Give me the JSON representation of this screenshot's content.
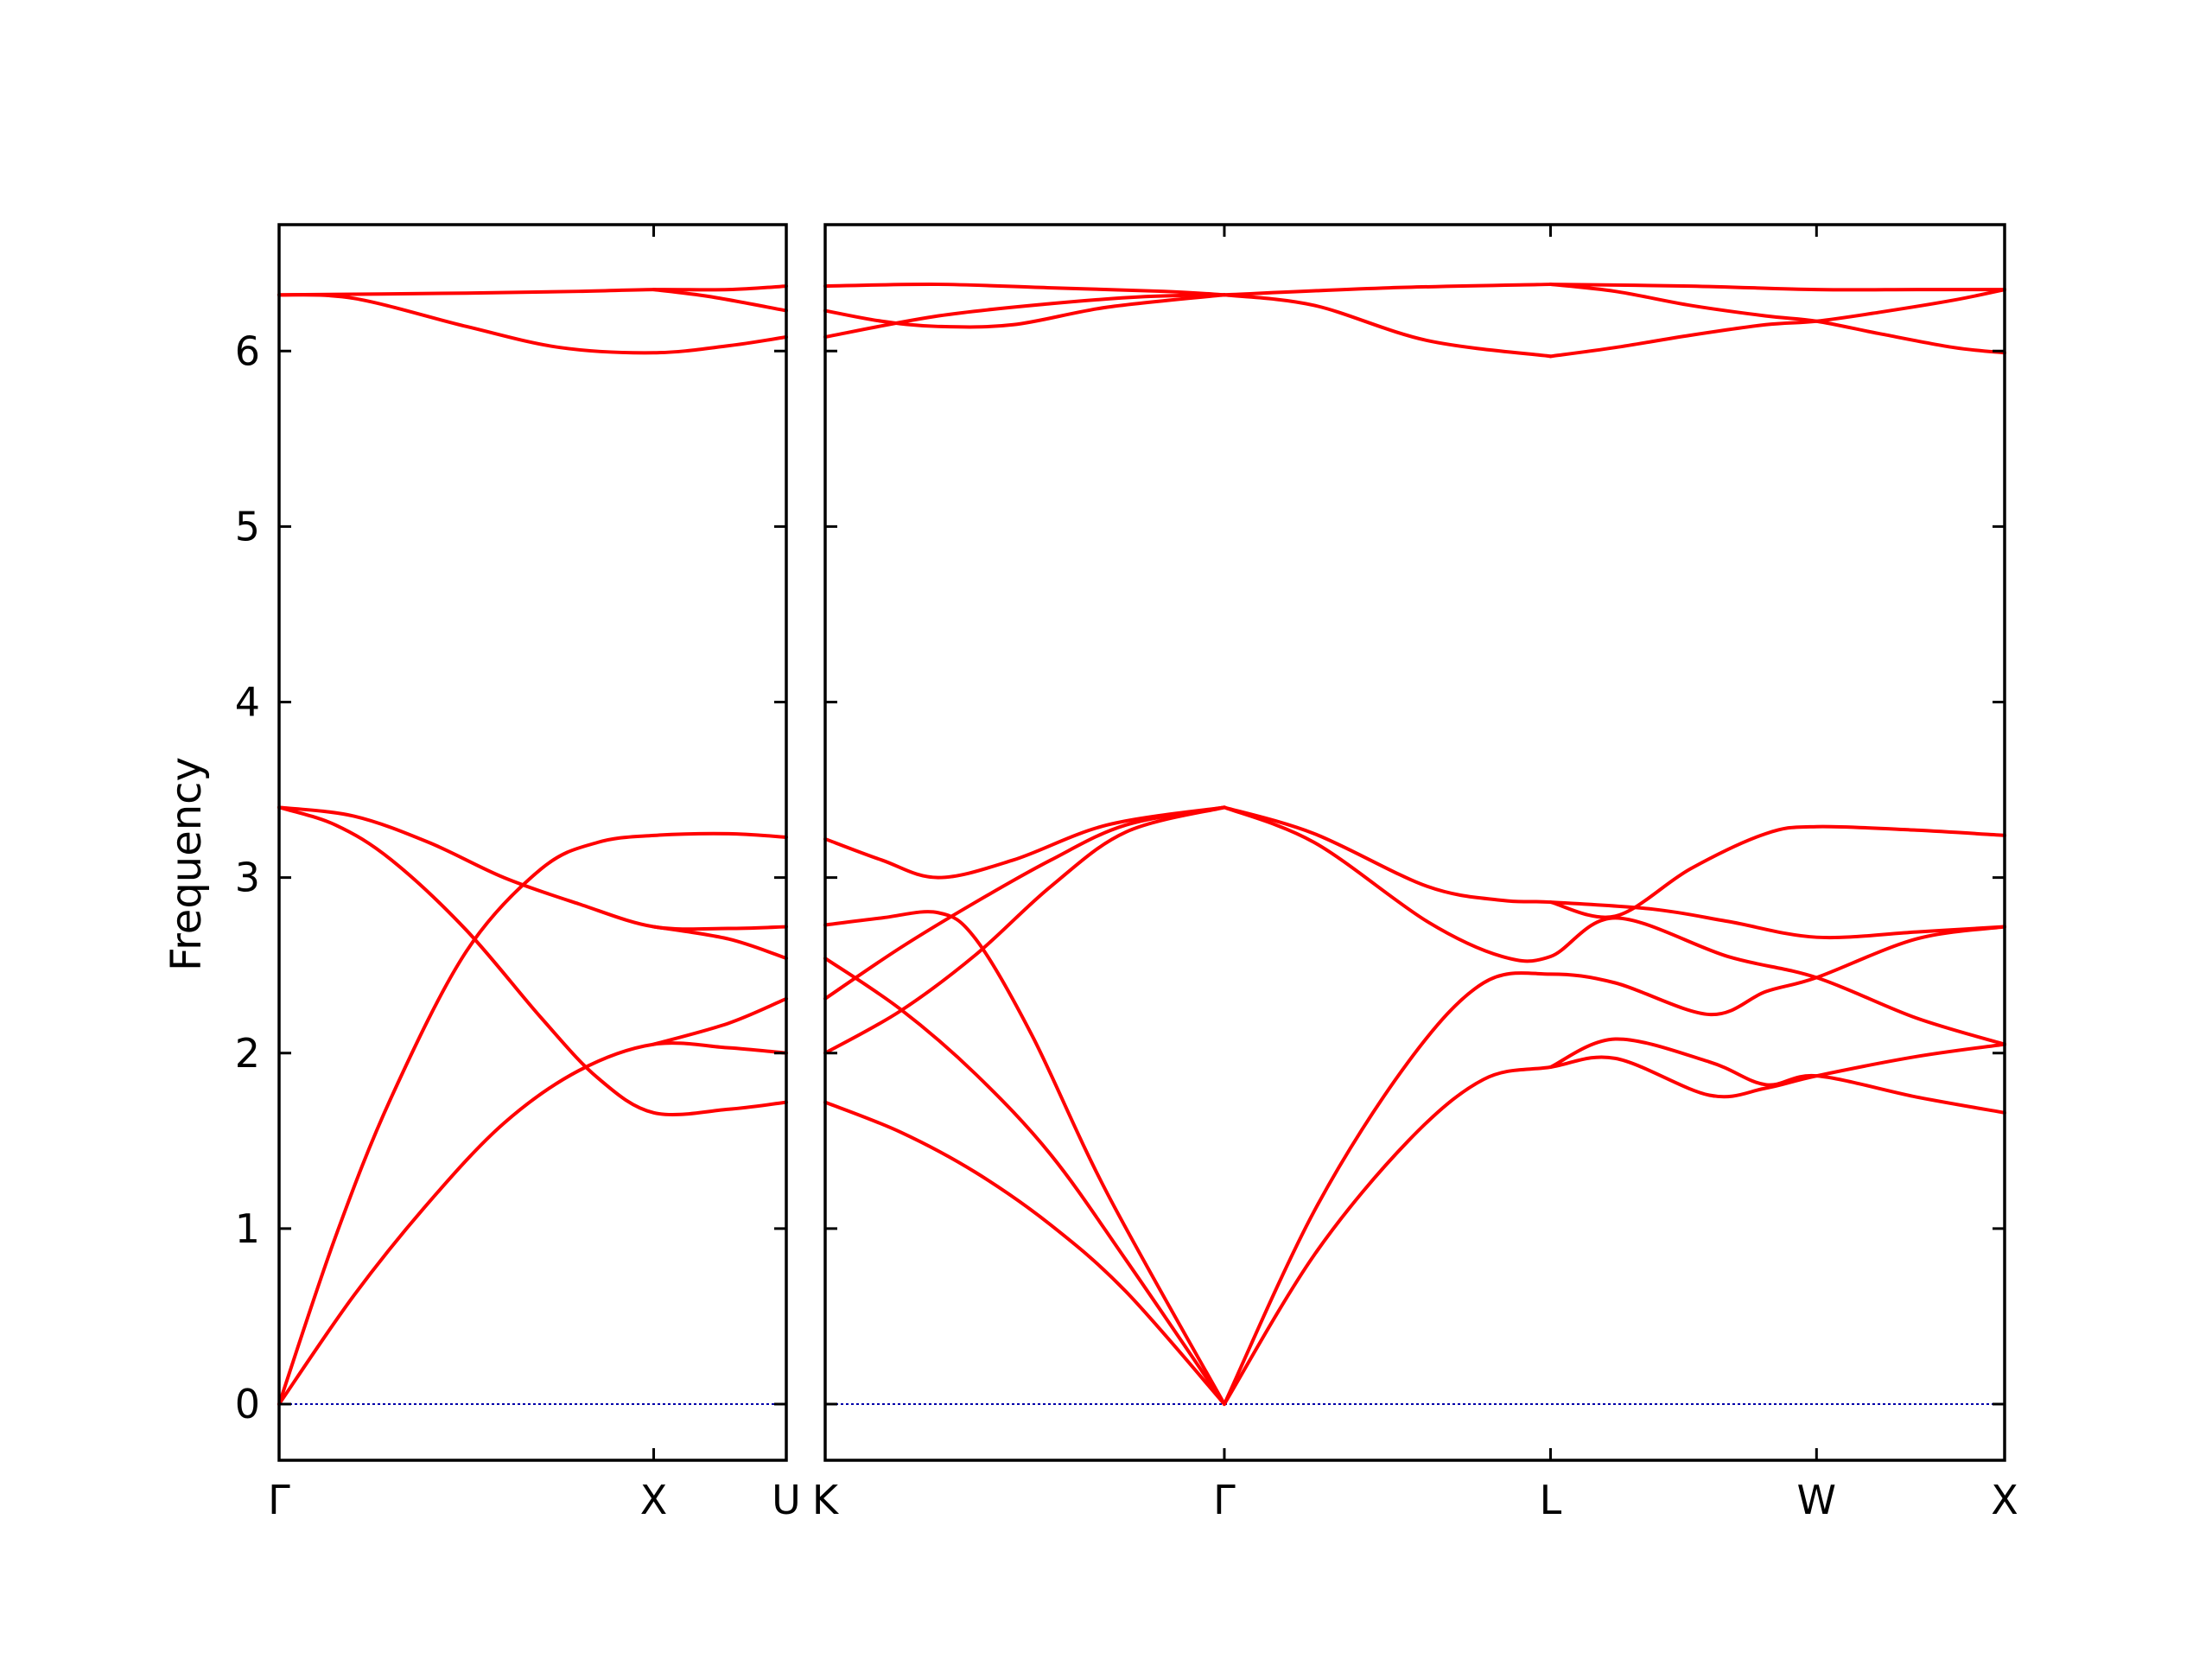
{
  "chart_data": {
    "type": "line",
    "ylabel": "Frequency",
    "ylim": [
      -0.32,
      6.72
    ],
    "yticks": [
      0,
      1,
      2,
      3,
      4,
      5,
      6
    ],
    "grid": false,
    "colors": {
      "bands": "#ff0000",
      "zero_line": "#0000aa"
    },
    "panels": [
      {
        "kpoint_labels": [
          "Γ",
          "X",
          "U"
        ],
        "kpoint_positions": [
          0,
          1,
          1.354
        ],
        "series": [
          {
            "x": [
              0,
              0.2,
              0.5,
              0.75,
              1,
              1.2,
              1.354
            ],
            "y": [
              6.32,
              6.3,
              6.14,
              6.02,
              5.99,
              6.03,
              6.08
            ]
          },
          {
            "x": [
              0,
              0.5,
              0.8,
              1,
              1.2,
              1.354
            ],
            "y": [
              6.32,
              6.33,
              6.34,
              6.35,
              6.35,
              6.37
            ]
          },
          {
            "x": [
              1,
              1.15,
              1.354
            ],
            "y": [
              6.35,
              6.31,
              6.23
            ]
          },
          {
            "x": [
              0,
              0.15,
              0.3,
              0.5,
              0.7,
              0.85,
              1,
              1.2,
              1.354
            ],
            "y": [
              3.4,
              3.3,
              3.1,
              2.7,
              2.2,
              1.86,
              1.66,
              1.68,
              1.72
            ]
          },
          {
            "x": [
              0,
              0.2,
              0.4,
              0.6,
              0.8,
              1,
              1.2,
              1.354
            ],
            "y": [
              3.4,
              3.35,
              3.2,
              3.0,
              2.85,
              2.72,
              2.71,
              2.72
            ]
          },
          {
            "x": [
              1,
              1.2,
              1.354
            ],
            "y": [
              2.72,
              2.65,
              2.54
            ]
          },
          {
            "x": [
              0,
              0.15,
              0.3,
              0.5,
              0.7,
              0.85,
              1,
              1.2,
              1.354
            ],
            "y": [
              0,
              0.95,
              1.75,
              2.58,
              3.05,
              3.2,
              3.24,
              3.25,
              3.23
            ]
          },
          {
            "x": [
              0,
              0.2,
              0.4,
              0.6,
              0.8,
              1,
              1.2,
              1.354
            ],
            "y": [
              0,
              0.62,
              1.15,
              1.6,
              1.9,
              2.05,
              2.03,
              2.0
            ]
          },
          {
            "x": [
              1,
              1.2,
              1.354
            ],
            "y": [
              2.05,
              2.17,
              2.31
            ]
          }
        ]
      },
      {
        "kpoint_labels": [
          "K",
          "Γ",
          "L",
          "W",
          "X"
        ],
        "kpoint_positions": [
          0,
          1.061,
          1.928,
          2.635,
          3.135
        ],
        "series": [
          {
            "x": [
              0,
              0.15,
              0.3,
              0.5,
              0.75,
              1.061
            ],
            "y": [
              6.23,
              6.17,
              6.14,
              6.15,
              6.25,
              6.32
            ]
          },
          {
            "x": [
              0,
              0.3,
              0.6,
              0.85,
              1.061
            ],
            "y": [
              6.08,
              6.2,
              6.27,
              6.31,
              6.32
            ]
          },
          {
            "x": [
              0,
              0.3,
              0.6,
              0.9,
              1.061
            ],
            "y": [
              6.37,
              6.38,
              6.36,
              6.34,
              6.32
            ]
          },
          {
            "x": [
              1.061,
              1.3,
              1.6,
              1.928
            ],
            "y": [
              6.32,
              6.26,
              6.06,
              5.97
            ]
          },
          {
            "x": [
              1.061,
              1.5,
              1.928
            ],
            "y": [
              6.32,
              6.36,
              6.38
            ]
          },
          {
            "x": [
              1.928,
              2.1,
              2.3,
              2.5,
              2.635,
              2.8,
              3.0,
              3.135
            ],
            "y": [
              5.97,
              6.02,
              6.09,
              6.15,
              6.17,
              6.22,
              6.29,
              6.35
            ]
          },
          {
            "x": [
              1.928,
              2.1,
              2.3,
              2.5,
              2.635,
              2.8,
              3.0,
              3.135
            ],
            "y": [
              6.38,
              6.34,
              6.26,
              6.2,
              6.17,
              6.1,
              6.02,
              5.99
            ]
          },
          {
            "x": [
              1.928,
              2.3,
              2.635,
              2.9,
              3.135
            ],
            "y": [
              6.38,
              6.37,
              6.35,
              6.35,
              6.35
            ]
          },
          {
            "x": [
              0,
              0.15,
              0.3,
              0.5,
              0.75,
              1.061
            ],
            "y": [
              3.22,
              3.1,
              3.0,
              3.1,
              3.3,
              3.4
            ]
          },
          {
            "x": [
              0,
              0.15,
              0.3,
              0.4,
              0.55,
              0.75,
              1.061
            ],
            "y": [
              2.73,
              2.77,
              2.8,
              2.65,
              2.1,
              1.2,
              0
            ]
          },
          {
            "x": [
              0,
              0.2,
              0.4,
              0.6,
              0.8,
              1.061
            ],
            "y": [
              2.54,
              2.25,
              1.88,
              1.42,
              0.82,
              0
            ]
          },
          {
            "x": [
              0,
              0.2,
              0.4,
              0.6,
              0.8,
              1.061
            ],
            "y": [
              1.72,
              1.55,
              1.32,
              1.02,
              0.64,
              0
            ]
          },
          {
            "x": [
              0,
              0.2,
              0.4,
              0.6,
              0.8,
              1.061
            ],
            "y": [
              2.31,
              2.6,
              2.86,
              3.1,
              3.3,
              3.4
            ]
          },
          {
            "x": [
              0,
              0.2,
              0.4,
              0.6,
              0.8,
              1.061
            ],
            "y": [
              2.0,
              2.24,
              2.56,
              2.95,
              3.26,
              3.4
            ]
          },
          {
            "x": [
              1.061,
              1.3,
              1.6,
              1.8,
              1.928,
              2.2,
              2.4,
              2.635,
              2.9,
              3.135
            ],
            "y": [
              3.4,
              3.25,
              2.95,
              2.87,
              2.86,
              2.82,
              2.75,
              2.66,
              2.69,
              2.72
            ]
          },
          {
            "x": [
              1.061,
              1.3,
              1.6,
              1.8,
              1.928,
              2.1,
              2.4,
              2.635,
              2.9,
              3.135
            ],
            "y": [
              3.4,
              3.2,
              2.75,
              2.55,
              2.55,
              2.77,
              2.55,
              2.43,
              2.2,
              2.05
            ]
          },
          {
            "x": [
              1.928,
              2.1,
              2.3,
              2.5,
              2.635,
              2.9,
              3.135
            ],
            "y": [
              2.86,
              2.78,
              3.05,
              3.25,
              3.29,
              3.27,
              3.24
            ]
          },
          {
            "x": [
              1.061,
              1.3,
              1.55,
              1.75,
              1.928,
              2.1,
              2.35,
              2.5,
              2.635,
              2.9,
              3.135
            ],
            "y": [
              0,
              1.1,
              1.95,
              2.4,
              2.45,
              2.4,
              2.22,
              2.35,
              2.43,
              2.65,
              2.72
            ]
          },
          {
            "x": [
              1.061,
              1.3,
              1.55,
              1.75,
              1.928,
              2.1,
              2.35,
              2.5,
              2.635,
              2.9,
              3.135
            ],
            "y": [
              0,
              0.85,
              1.5,
              1.85,
              1.92,
              1.97,
              1.76,
              1.8,
              1.87,
              1.98,
              2.05
            ]
          },
          {
            "x": [
              1.928,
              2.1,
              2.35,
              2.5,
              2.635,
              2.9,
              3.135
            ],
            "y": [
              1.92,
              2.08,
              1.95,
              1.82,
              1.87,
              1.75,
              1.66
            ]
          }
        ]
      }
    ]
  }
}
